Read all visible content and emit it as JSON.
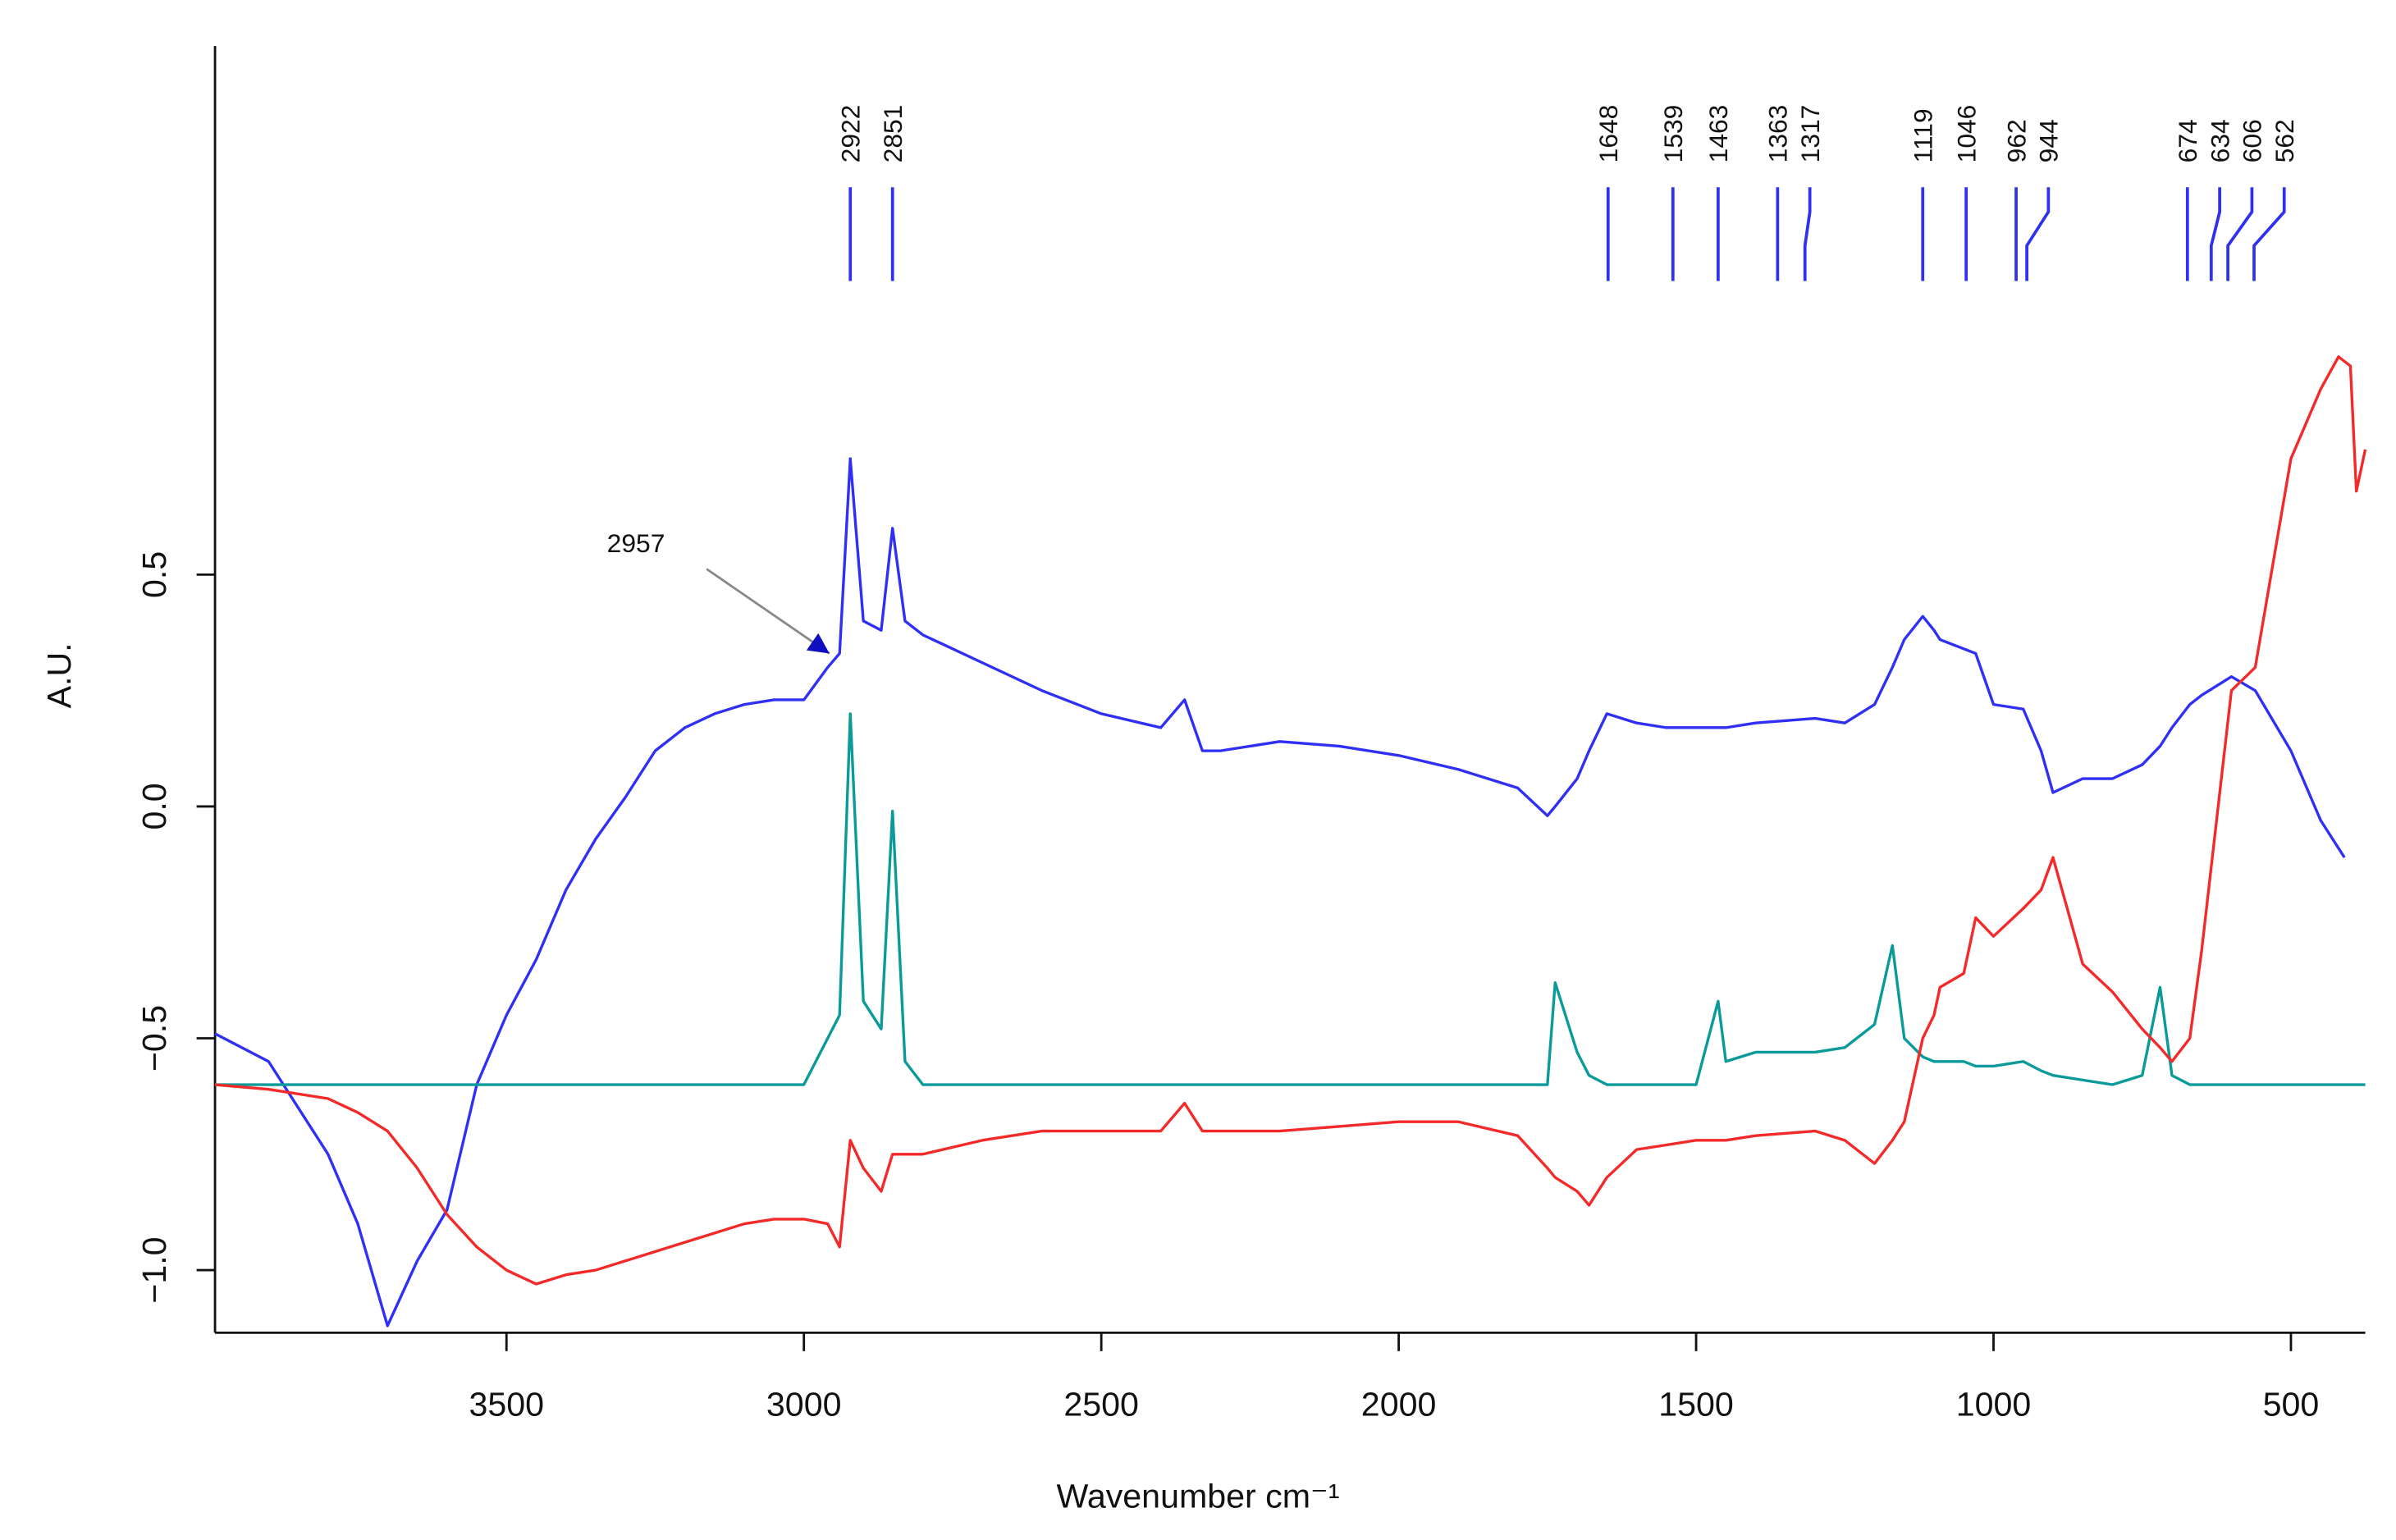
{
  "chart_data": {
    "type": "line",
    "xlabel": "Wavenumber cm⁻¹",
    "ylabel": "A.U.",
    "xlim": [
      3990,
      375
    ],
    "ylim": [
      -1.135,
      1.64
    ],
    "xticks": [
      3500,
      3000,
      2500,
      2000,
      1500,
      1000,
      500
    ],
    "yticks": [
      {
        "value": -1.0,
        "label": "−1.0"
      },
      {
        "value": -0.5,
        "label": "−0.5"
      },
      {
        "value": 0,
        "label": "0.0"
      },
      0.5
    ],
    "grid": false,
    "peak_labels": [
      2922,
      2851,
      1648,
      1539,
      1463,
      1363,
      1317,
      1119,
      1046,
      962,
      944,
      674,
      634,
      606,
      562
    ],
    "peak_color": "#3030f0",
    "arrow_annotation": {
      "text": "2957",
      "x": 2957,
      "y": 0.33
    },
    "x": [
      3990,
      3900,
      3800,
      3750,
      3700,
      3650,
      3600,
      3550,
      3500,
      3450,
      3400,
      3350,
      3300,
      3250,
      3200,
      3150,
      3100,
      3050,
      3000,
      2960,
      2940,
      2922,
      2900,
      2870,
      2851,
      2830,
      2800,
      2700,
      2600,
      2500,
      2400,
      2360,
      2330,
      2300,
      2200,
      2100,
      2000,
      1900,
      1800,
      1750,
      1737,
      1700,
      1680,
      1650,
      1600,
      1550,
      1500,
      1463,
      1450,
      1400,
      1300,
      1250,
      1200,
      1170,
      1150,
      1119,
      1100,
      1090,
      1050,
      1030,
      1000,
      950,
      920,
      900,
      850,
      800,
      750,
      720,
      700,
      670,
      650,
      600,
      560,
      500,
      450,
      420,
      410,
      400,
      390,
      375
    ],
    "series": [
      {
        "color": "#2f2ff5",
        "values": [
          -0.49,
          -0.55,
          -0.75,
          -0.9,
          -1.12,
          -0.98,
          -0.87,
          -0.6,
          -0.45,
          -0.33,
          -0.18,
          -0.07,
          0.02,
          0.12,
          0.17,
          0.2,
          0.22,
          0.23,
          0.23,
          0.3,
          0.33,
          0.75,
          0.4,
          0.38,
          0.6,
          0.4,
          0.37,
          0.31,
          0.25,
          0.2,
          0.17,
          0.23,
          0.12,
          0.12,
          0.14,
          0.13,
          0.11,
          0.08,
          0.04,
          -0.02,
          0.0,
          0.06,
          0.12,
          0.2,
          0.18,
          0.17,
          0.17,
          0.17,
          0.17,
          0.18,
          0.19,
          0.18,
          0.22,
          0.3,
          0.36,
          0.41,
          0.38,
          0.36,
          0.34,
          0.33,
          0.22,
          0.21,
          0.12,
          0.03,
          0.06,
          0.06,
          0.09,
          0.13,
          0.17,
          0.22,
          0.24,
          0.28,
          0.25,
          0.12,
          -0.03,
          -0.09,
          -0.11,
          null,
          null,
          null
        ]
      },
      {
        "color": "#0a9a9a",
        "values": [
          -0.6,
          -0.6,
          -0.6,
          -0.6,
          -0.6,
          -0.6,
          -0.6,
          -0.6,
          -0.6,
          -0.6,
          -0.6,
          -0.6,
          -0.6,
          -0.6,
          -0.6,
          -0.6,
          -0.6,
          -0.6,
          -0.6,
          -0.5,
          -0.45,
          0.2,
          -0.42,
          -0.48,
          -0.01,
          -0.55,
          -0.6,
          -0.6,
          -0.6,
          -0.6,
          -0.6,
          -0.6,
          -0.6,
          -0.6,
          -0.6,
          -0.6,
          -0.6,
          -0.6,
          -0.6,
          -0.6,
          -0.38,
          -0.53,
          -0.58,
          -0.6,
          -0.6,
          -0.6,
          -0.6,
          -0.42,
          -0.55,
          -0.53,
          -0.53,
          -0.52,
          -0.47,
          -0.3,
          -0.5,
          -0.54,
          -0.55,
          -0.55,
          -0.55,
          -0.56,
          -0.56,
          -0.55,
          -0.57,
          -0.58,
          -0.59,
          -0.6,
          -0.58,
          -0.39,
          -0.58,
          -0.6,
          -0.6,
          -0.6,
          -0.6,
          -0.6,
          -0.6,
          -0.6,
          -0.6,
          -0.6,
          -0.6,
          -0.6
        ]
      },
      {
        "color": "#f42a2a",
        "values": [
          -0.6,
          -0.61,
          -0.63,
          -0.66,
          -0.7,
          -0.78,
          -0.88,
          -0.95,
          -1.0,
          -1.03,
          -1.01,
          -1.0,
          -0.98,
          -0.96,
          -0.94,
          -0.92,
          -0.9,
          -0.89,
          -0.89,
          -0.9,
          -0.95,
          -0.72,
          -0.78,
          -0.83,
          -0.75,
          -0.75,
          -0.75,
          -0.72,
          -0.7,
          -0.7,
          -0.7,
          -0.64,
          -0.7,
          -0.7,
          -0.7,
          -0.69,
          -0.68,
          -0.68,
          -0.71,
          -0.78,
          -0.8,
          -0.83,
          -0.86,
          -0.8,
          -0.74,
          -0.73,
          -0.72,
          -0.72,
          -0.72,
          -0.71,
          -0.7,
          -0.72,
          -0.77,
          -0.72,
          -0.68,
          -0.5,
          -0.45,
          -0.39,
          -0.36,
          -0.24,
          -0.28,
          -0.22,
          -0.18,
          -0.11,
          -0.34,
          -0.4,
          -0.48,
          -0.52,
          -0.55,
          -0.5,
          -0.31,
          0.25,
          0.3,
          0.75,
          0.9,
          0.97,
          0.96,
          0.95,
          0.68,
          0.77
        ]
      }
    ]
  }
}
